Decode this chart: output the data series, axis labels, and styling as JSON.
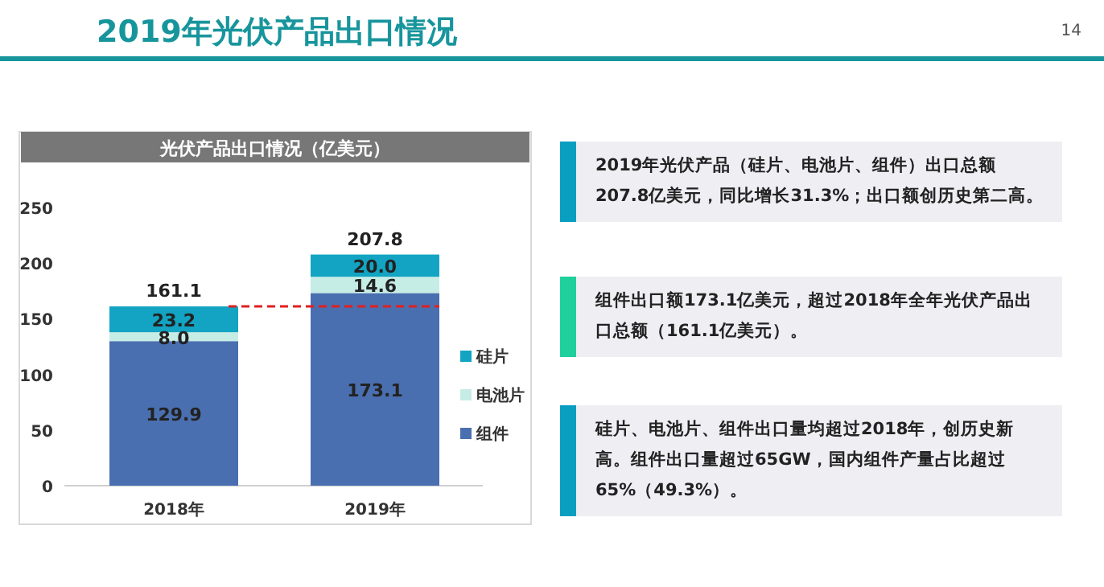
{
  "chart_data": {
    "type": "bar",
    "stacked": true,
    "title": "2019年光伏产品出口情况",
    "subtitle": "光伏产品出口情况（亿美元）",
    "categories": [
      "2018年",
      "2019年"
    ],
    "series": [
      {
        "name": "组件",
        "color": "#4a6fb0",
        "values": [
          129.9,
          173.1
        ],
        "value_labels": [
          "129.9",
          "173.1"
        ]
      },
      {
        "name": "电池片",
        "color": "#c6ece6",
        "values": [
          8.0,
          14.6
        ],
        "value_labels": [
          "8.0",
          "14.6"
        ]
      },
      {
        "name": "硅片",
        "color": "#12a4c2",
        "values": [
          23.2,
          20.0
        ],
        "value_labels": [
          "23.2",
          "20.0"
        ]
      }
    ],
    "totals": [
      "161.1",
      "207.8"
    ],
    "ylim": [
      0,
      250
    ],
    "yticks": [
      0,
      50,
      100,
      150,
      200,
      250
    ],
    "legend": "right",
    "ref_lines": [
      {
        "axis": "y",
        "value": 161.1,
        "color": "#e02020",
        "line_style": "dashed"
      }
    ],
    "annotations": [
      "14",
      "2019年光伏产品（硅片、电池片、组件）出口总额207.8亿美元，同比增长31.3%；出口额创历史第二高。",
      "组件出口额173.1亿美元，超过2018年全年光伏产品出口总额（161.1亿美元）。",
      "硅片、电池片、组件出口量均超过2018年，创历史新高。组件出口量超过65GW，国内组件产量占比超过65%（49.3%）。"
    ]
  }
}
